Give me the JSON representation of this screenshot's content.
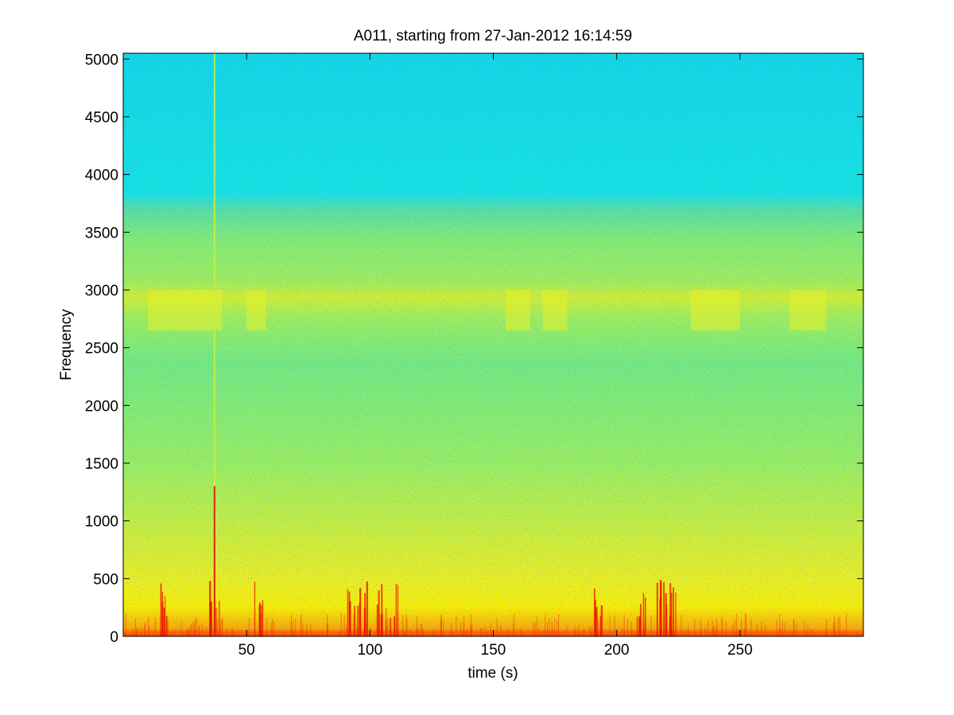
{
  "chart_data": {
    "type": "heatmap",
    "subtype": "spectrogram",
    "title": "A011, starting from 27-Jan-2012 16:14:59",
    "xlabel": "time (s)",
    "ylabel": "Frequency",
    "xlim": [
      0,
      300
    ],
    "ylim": [
      0,
      5050
    ],
    "xticks": [
      50,
      100,
      150,
      200,
      250
    ],
    "yticks": [
      0,
      500,
      1000,
      1500,
      2000,
      2500,
      3000,
      3500,
      4000,
      4500,
      5000
    ],
    "grid": false,
    "colormap": "jet",
    "colormap_colors": [
      "#0000ff",
      "#00ffff",
      "#ffff00",
      "#ff0000"
    ],
    "description_bands": [
      {
        "freq_range": [
          3700,
          5050
        ],
        "intensity": "low",
        "color": "cyan-blue"
      },
      {
        "freq_range": [
          2600,
          3100
        ],
        "intensity": "elevated",
        "color": "yellow-green"
      },
      {
        "freq_range": [
          450,
          3700
        ],
        "intensity": "medium",
        "color": "green-yellow"
      },
      {
        "freq_range": [
          0,
          450
        ],
        "intensity": "high",
        "color": "yellow-red"
      }
    ],
    "impulse_events_s": [
      17,
      37,
      55,
      92,
      97,
      105,
      110,
      193,
      210,
      218,
      222
    ],
    "tonal_line": {
      "time_s": 37,
      "freq_range": [
        0,
        5050
      ]
    }
  }
}
